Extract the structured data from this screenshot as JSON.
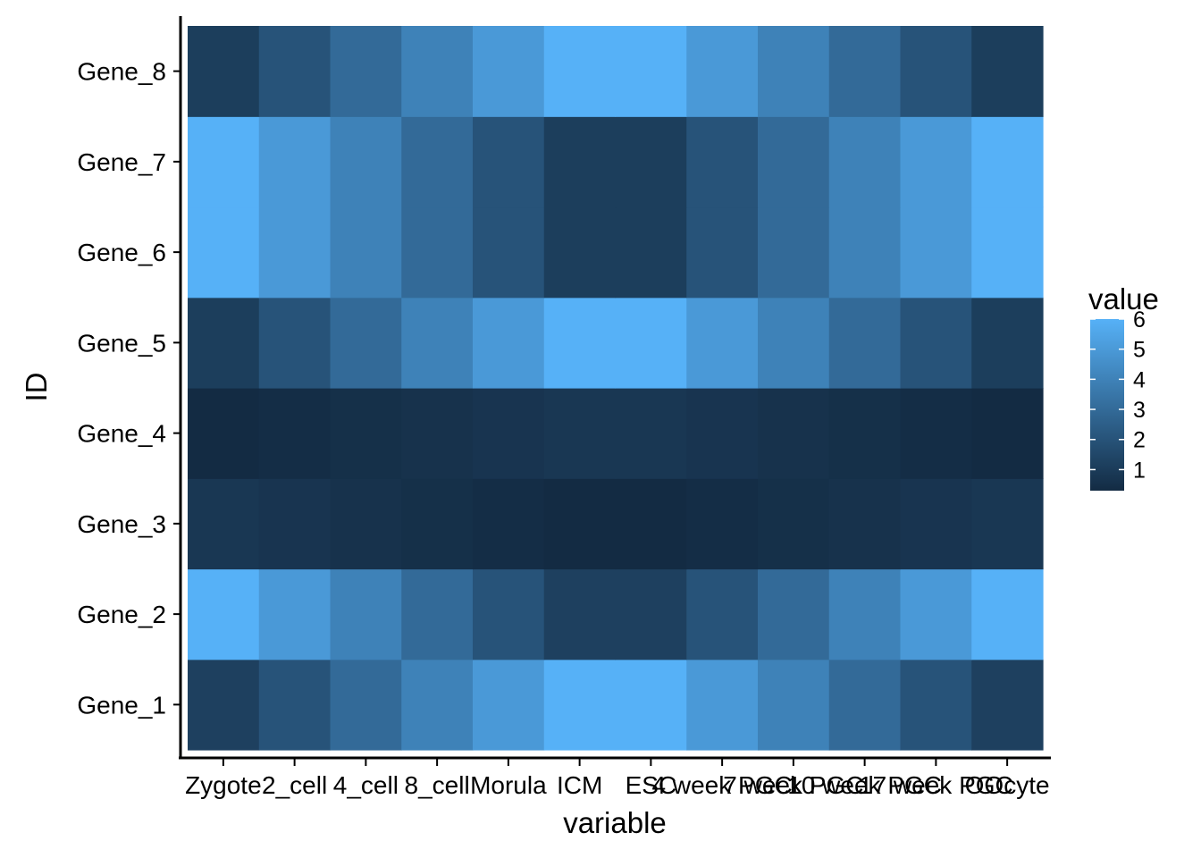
{
  "chart_data": {
    "type": "heatmap",
    "xlabel": "variable",
    "ylabel": "ID",
    "x_categories": [
      "Zygote",
      "2_cell",
      "4_cell",
      "8_cell",
      "Morula",
      "ICM",
      "ESC",
      "4 week PGC",
      "7 week PGC",
      "10 week PGC",
      "17 week PGC",
      "OOcyte"
    ],
    "y_categories": [
      "Gene_1",
      "Gene_2",
      "Gene_3",
      "Gene_4",
      "Gene_5",
      "Gene_6",
      "Gene_7",
      "Gene_8"
    ],
    "values": [
      [
        1.2,
        2.0,
        3.0,
        4.0,
        5.0,
        6.0,
        6.0,
        5.0,
        4.0,
        3.0,
        2.0,
        1.2
      ],
      [
        6.0,
        5.0,
        4.0,
        3.0,
        2.0,
        1.2,
        1.2,
        2.0,
        3.0,
        4.0,
        5.0,
        6.0
      ],
      [
        0.8,
        0.7,
        0.6,
        0.5,
        0.4,
        0.3,
        0.3,
        0.4,
        0.5,
        0.6,
        0.7,
        0.8
      ],
      [
        0.3,
        0.4,
        0.5,
        0.6,
        0.7,
        0.8,
        0.8,
        0.7,
        0.6,
        0.5,
        0.4,
        0.3
      ],
      [
        1.1,
        2.0,
        3.0,
        4.0,
        5.0,
        6.0,
        6.0,
        5.0,
        4.0,
        3.0,
        2.0,
        1.1
      ],
      [
        6.0,
        5.0,
        4.0,
        3.0,
        2.0,
        1.1,
        1.1,
        2.0,
        3.0,
        4.0,
        5.0,
        6.0
      ],
      [
        6.0,
        5.0,
        4.0,
        3.0,
        2.0,
        1.1,
        1.1,
        2.0,
        3.0,
        4.0,
        5.0,
        6.0
      ],
      [
        1.1,
        2.0,
        3.0,
        4.0,
        5.0,
        6.0,
        6.0,
        5.0,
        4.0,
        3.0,
        2.0,
        1.1
      ]
    ],
    "legend": {
      "title": "value",
      "placement": "right",
      "ticks": [
        1,
        2,
        3,
        4,
        5,
        6
      ],
      "range": [
        0.3,
        6.0
      ],
      "low_color": "#132B43",
      "high_color": "#56B1F7"
    }
  }
}
